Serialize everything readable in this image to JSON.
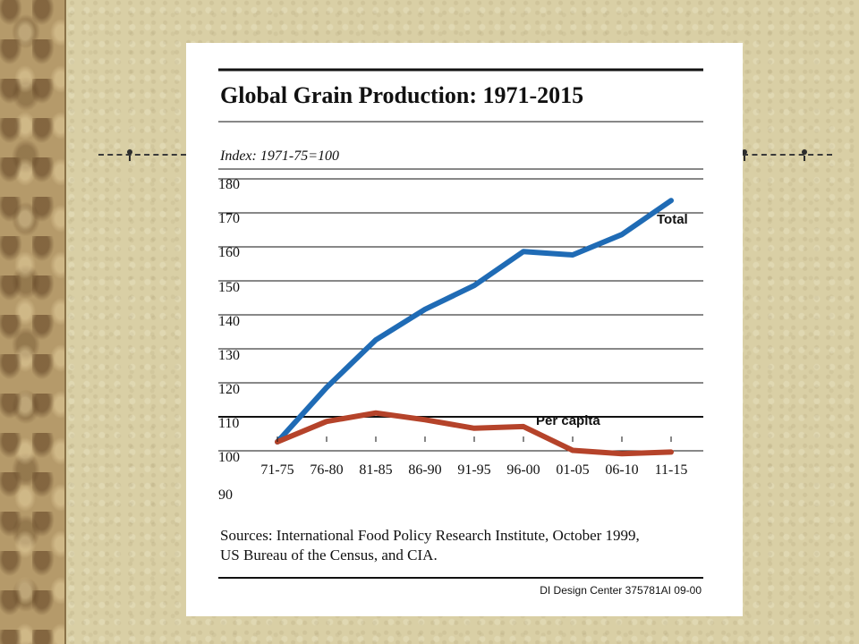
{
  "slide": {
    "background": "#d9cfa5",
    "credit": "DI Design Center  375781AI 09-00",
    "source_line_1": "Sources: International Food Policy Research Institute, October 1999,",
    "source_line_2": "US Bureau of the Census, and CIA."
  },
  "chart_data": {
    "type": "line",
    "title": "Global Grain Production: 1971-2015",
    "subtitle": "Index: 1971-75=100",
    "xlabel": "",
    "ylabel": "",
    "categories": [
      "71-75",
      "76-80",
      "81-85",
      "86-90",
      "91-95",
      "96-00",
      "01-05",
      "06-10",
      "11-15"
    ],
    "y_ticks": [
      "180",
      "170",
      "160",
      "150",
      "140",
      "130",
      "120",
      "110",
      "100",
      "90"
    ],
    "ylim": [
      90,
      180
    ],
    "grid": "horizontal",
    "series": [
      {
        "name": "Total",
        "color": "#1f6bb5",
        "values": [
          100,
          116,
          130,
          139,
          146,
          156,
          155,
          161,
          171
        ]
      },
      {
        "name": "Per capita",
        "color": "#b5432a",
        "values": [
          100,
          106,
          108.5,
          106.5,
          104,
          104.5,
          97.5,
          96.5,
          97
        ]
      }
    ]
  }
}
